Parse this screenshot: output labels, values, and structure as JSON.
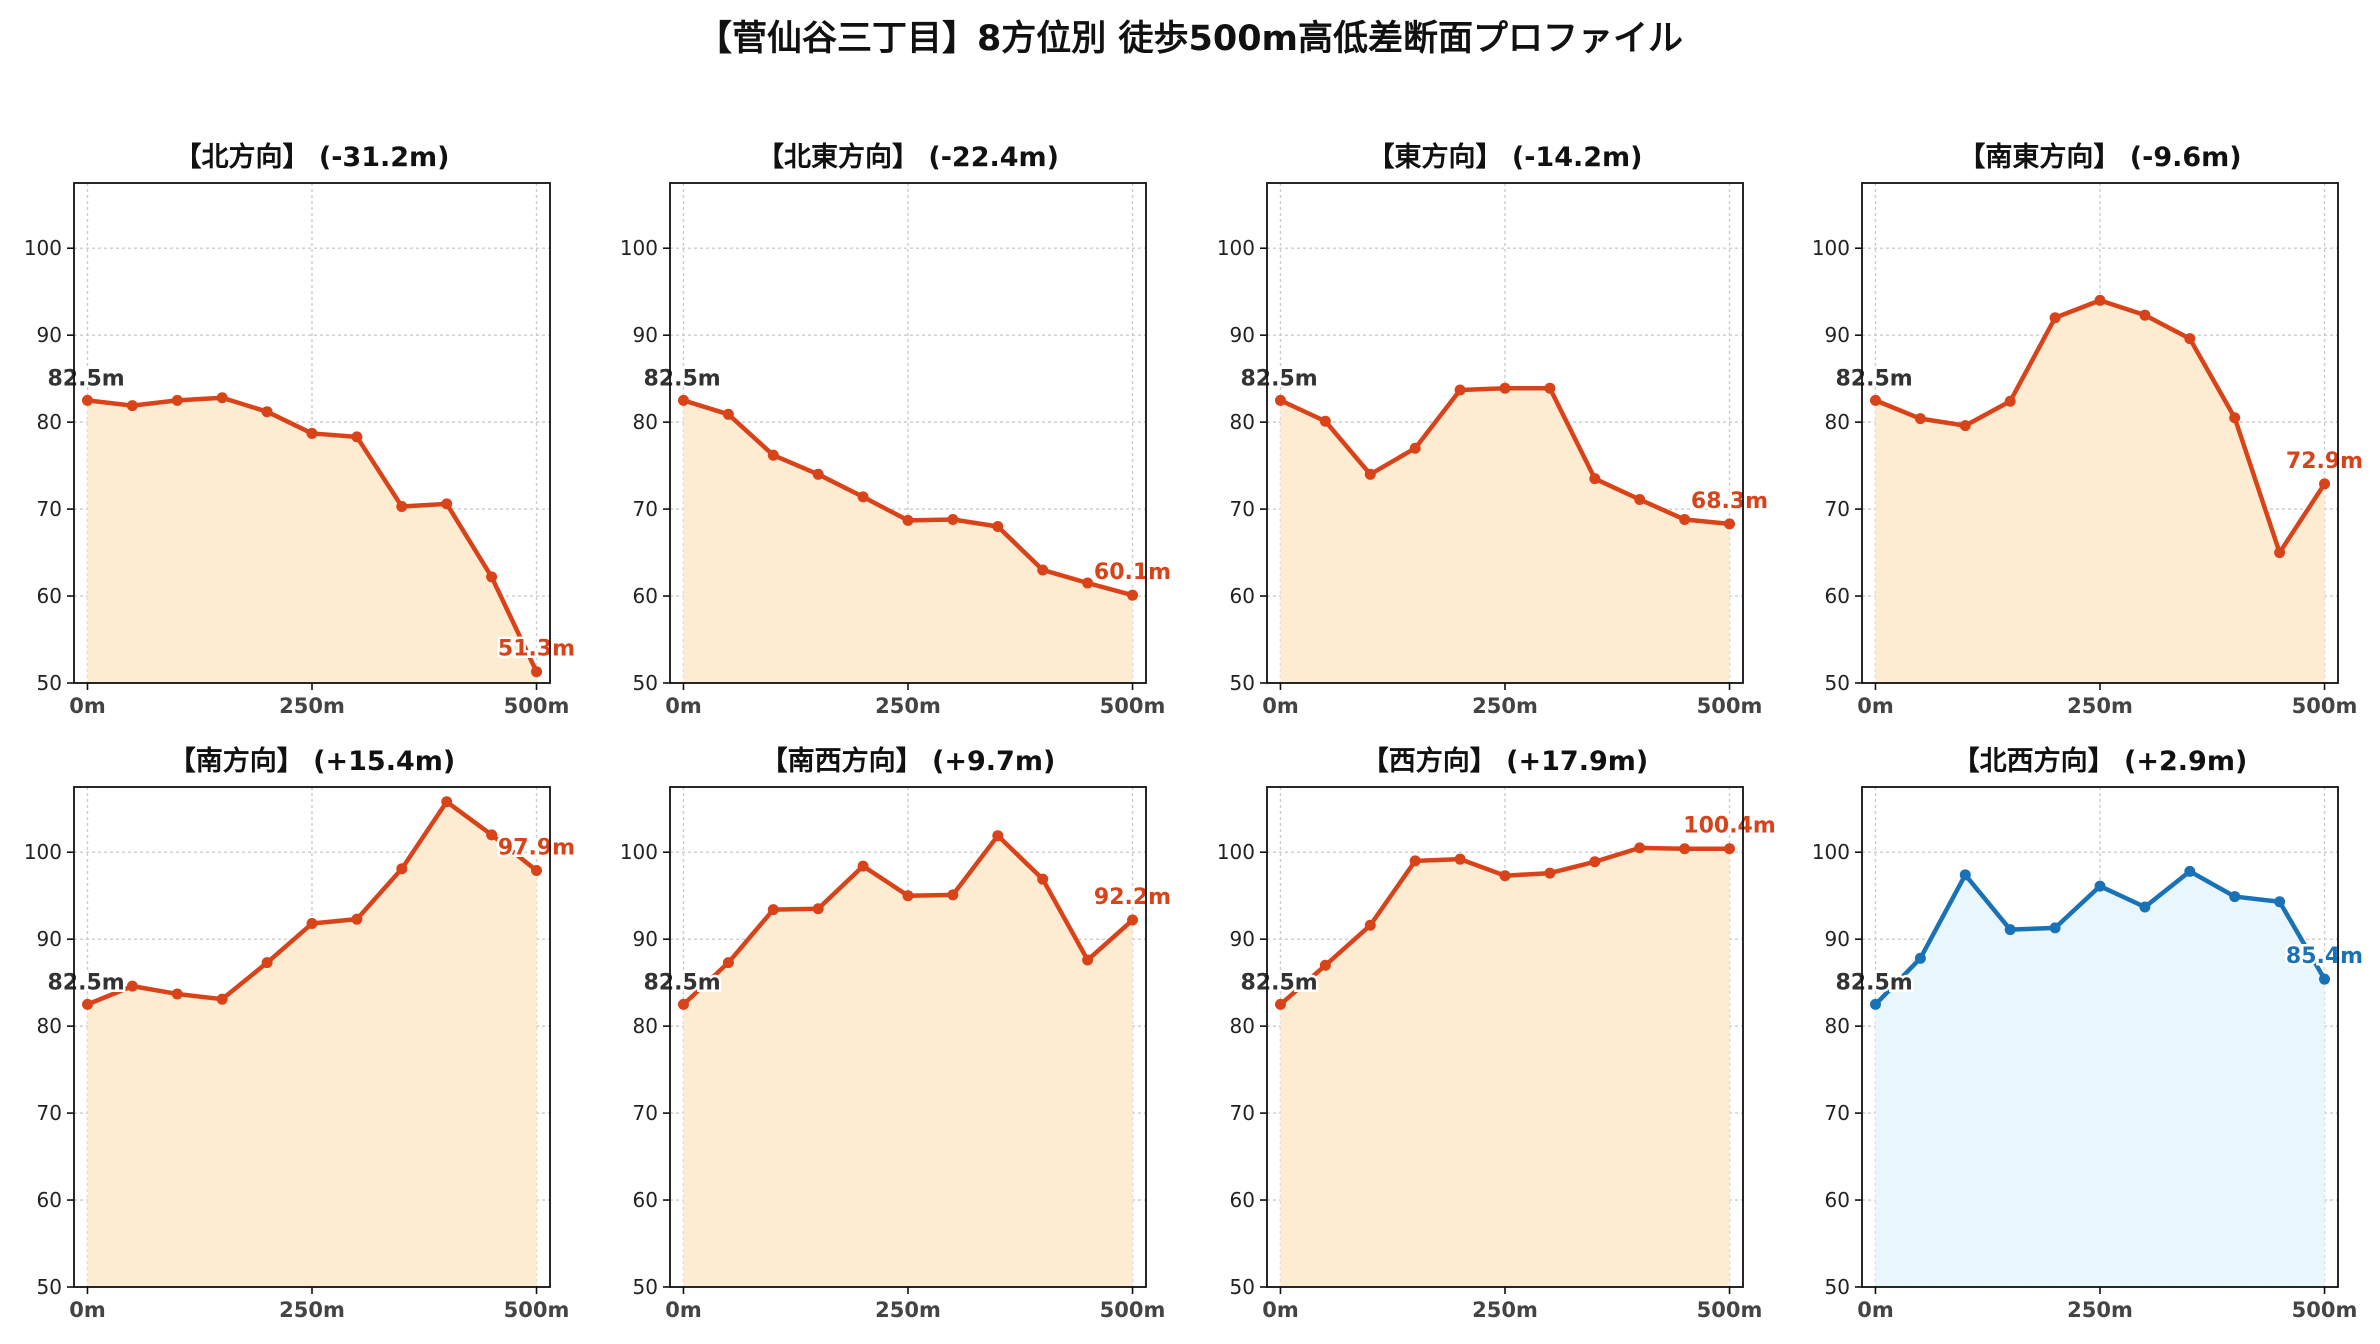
{
  "title": "【菅仙谷三丁目】8方位別 徒歩500m高低差断面プロファイル",
  "chart_data": [
    {
      "type": "area",
      "title": "【北方向】 (-31.2m)",
      "color": "#d9431a",
      "fill": "#fdebd2",
      "x": [
        0,
        50,
        100,
        150,
        200,
        250,
        300,
        350,
        400,
        450,
        500
      ],
      "y": [
        82.5,
        81.9,
        82.5,
        82.8,
        81.2,
        78.7,
        78.3,
        70.3,
        70.6,
        62.2,
        51.3
      ],
      "start_label": "82.5m",
      "end_label": "51.3m",
      "xticks": [
        "0m",
        "250m",
        "500m"
      ],
      "yticks": [
        50,
        60,
        70,
        80,
        90,
        100
      ],
      "ylim": [
        50,
        107.5
      ],
      "grid": true
    },
    {
      "type": "area",
      "title": "【北東方向】 (-22.4m)",
      "color": "#d9431a",
      "fill": "#fdebd2",
      "x": [
        0,
        50,
        100,
        150,
        200,
        250,
        300,
        350,
        400,
        450,
        500
      ],
      "y": [
        82.5,
        80.9,
        76.2,
        74.0,
        71.4,
        68.7,
        68.8,
        68.0,
        63.0,
        61.5,
        60.1
      ],
      "start_label": "82.5m",
      "end_label": "60.1m",
      "xticks": [
        "0m",
        "250m",
        "500m"
      ],
      "yticks": [
        50,
        60,
        70,
        80,
        90,
        100
      ],
      "ylim": [
        50,
        107.5
      ],
      "grid": true
    },
    {
      "type": "area",
      "title": "【東方向】 (-14.2m)",
      "color": "#d9431a",
      "fill": "#fdebd2",
      "x": [
        0,
        50,
        100,
        150,
        200,
        250,
        300,
        350,
        400,
        450,
        500
      ],
      "y": [
        82.5,
        80.1,
        74.0,
        77.0,
        83.7,
        83.9,
        83.9,
        73.5,
        71.1,
        68.8,
        68.3
      ],
      "start_label": "82.5m",
      "end_label": "68.3m",
      "xticks": [
        "0m",
        "250m",
        "500m"
      ],
      "yticks": [
        50,
        60,
        70,
        80,
        90,
        100
      ],
      "ylim": [
        50,
        107.5
      ],
      "grid": true
    },
    {
      "type": "area",
      "title": "【南東方向】 (-9.6m)",
      "color": "#d9431a",
      "fill": "#fdebd2",
      "x": [
        0,
        50,
        100,
        150,
        200,
        250,
        300,
        350,
        400,
        450,
        500
      ],
      "y": [
        82.5,
        80.4,
        79.6,
        82.4,
        92.0,
        94.0,
        92.3,
        89.6,
        80.5,
        65.0,
        72.9
      ],
      "start_label": "82.5m",
      "end_label": "72.9m",
      "xticks": [
        "0m",
        "250m",
        "500m"
      ],
      "yticks": [
        50,
        60,
        70,
        80,
        90,
        100
      ],
      "ylim": [
        50,
        107.5
      ],
      "grid": true
    },
    {
      "type": "area",
      "title": "【南方向】 (+15.4m)",
      "color": "#d9431a",
      "fill": "#fdebd2",
      "x": [
        0,
        50,
        100,
        150,
        200,
        250,
        300,
        350,
        400,
        450,
        500
      ],
      "y": [
        82.5,
        84.6,
        83.7,
        83.1,
        87.3,
        91.8,
        92.3,
        98.1,
        105.8,
        102.0,
        97.9
      ],
      "start_label": "82.5m",
      "end_label": "97.9m",
      "xticks": [
        "0m",
        "250m",
        "500m"
      ],
      "yticks": [
        50,
        60,
        70,
        80,
        90,
        100
      ],
      "ylim": [
        50,
        107.5
      ],
      "grid": true
    },
    {
      "type": "area",
      "title": "【南西方向】 (+9.7m)",
      "color": "#d9431a",
      "fill": "#fdebd2",
      "x": [
        0,
        50,
        100,
        150,
        200,
        250,
        300,
        350,
        400,
        450,
        500
      ],
      "y": [
        82.5,
        87.3,
        93.4,
        93.5,
        98.4,
        95.0,
        95.1,
        101.9,
        96.9,
        87.6,
        92.2
      ],
      "start_label": "82.5m",
      "end_label": "92.2m",
      "xticks": [
        "0m",
        "250m",
        "500m"
      ],
      "yticks": [
        50,
        60,
        70,
        80,
        90,
        100
      ],
      "ylim": [
        50,
        107.5
      ],
      "grid": true
    },
    {
      "type": "area",
      "title": "【西方向】 (+17.9m)",
      "color": "#d9431a",
      "fill": "#fdebd2",
      "x": [
        0,
        50,
        100,
        150,
        200,
        250,
        300,
        350,
        400,
        450,
        500
      ],
      "y": [
        82.5,
        87.0,
        91.6,
        99.0,
        99.2,
        97.3,
        97.6,
        98.9,
        100.5,
        100.4,
        100.4
      ],
      "start_label": "82.5m",
      "end_label": "100.4m",
      "xticks": [
        "0m",
        "250m",
        "500m"
      ],
      "yticks": [
        50,
        60,
        70,
        80,
        90,
        100
      ],
      "ylim": [
        50,
        107.5
      ],
      "grid": true
    },
    {
      "type": "area",
      "title": "【北西方向】 (+2.9m)",
      "color": "#1a72b6",
      "fill": "#e9f6fc",
      "x": [
        0,
        50,
        100,
        150,
        200,
        250,
        300,
        350,
        400,
        450,
        500
      ],
      "y": [
        82.5,
        87.8,
        97.4,
        91.1,
        91.3,
        96.1,
        93.7,
        97.8,
        94.9,
        94.3,
        85.4
      ],
      "start_label": "82.5m",
      "end_label": "85.4m",
      "xticks": [
        "0m",
        "250m",
        "500m"
      ],
      "yticks": [
        50,
        60,
        70,
        80,
        90,
        100
      ],
      "ylim": [
        50,
        107.5
      ],
      "grid": true
    }
  ]
}
